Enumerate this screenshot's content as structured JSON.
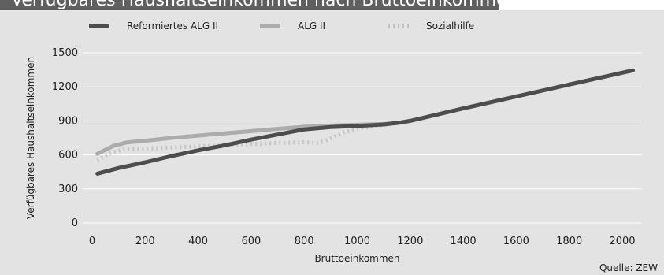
{
  "title": "Verfügbares Haushaltseinkommen nach Bruttoeinkommen",
  "source": "Quelle: ZEW",
  "chart_data": {
    "type": "line",
    "title": "Verfügbares Haushaltseinkommen nach Bruttoeinkommen",
    "xlabel": "Bruttoeinkommen",
    "ylabel": "Verfügbares Haushaltseinkommen",
    "xlim": [
      0,
      2050
    ],
    "ylim": [
      0,
      1500
    ],
    "xticks": [
      0,
      200,
      400,
      600,
      800,
      1000,
      1200,
      1400,
      1600,
      1800,
      2000
    ],
    "yticks": [
      0,
      300,
      600,
      900,
      1200,
      1500
    ],
    "grid": "horizontal",
    "legend_position": "top",
    "series": [
      {
        "name": "Reformiertes ALG II",
        "color": "#4d4d4d",
        "style": "solid",
        "x": [
          20,
          100,
          200,
          300,
          400,
          500,
          600,
          700,
          800,
          900,
          1000,
          1100,
          1160,
          1200,
          1400,
          1600,
          1800,
          2040
        ],
        "y": [
          435,
          485,
          535,
          590,
          640,
          685,
          735,
          780,
          825,
          845,
          855,
          868,
          885,
          900,
          1010,
          1115,
          1220,
          1345
        ]
      },
      {
        "name": "ALG II",
        "color": "#acacac",
        "style": "solid",
        "x": [
          20,
          80,
          130,
          200,
          300,
          400,
          500,
          600,
          700,
          800,
          900,
          1000,
          1100,
          1160,
          1200,
          1400,
          1600,
          1800,
          2040
        ],
        "y": [
          610,
          680,
          710,
          725,
          750,
          770,
          790,
          810,
          830,
          848,
          858,
          865,
          872,
          882,
          900,
          1010,
          1115,
          1220,
          1345
        ]
      },
      {
        "name": "Sozialhilfe",
        "color": "#c4c4c4",
        "style": "dotted",
        "x": [
          20,
          60,
          120,
          200,
          300,
          400,
          500,
          600,
          700,
          800,
          850,
          880,
          950,
          1000,
          1100,
          1160,
          1200
        ],
        "y": [
          550,
          610,
          650,
          655,
          665,
          675,
          685,
          695,
          705,
          712,
          705,
          725,
          800,
          830,
          865,
          885,
          900
        ]
      }
    ]
  }
}
